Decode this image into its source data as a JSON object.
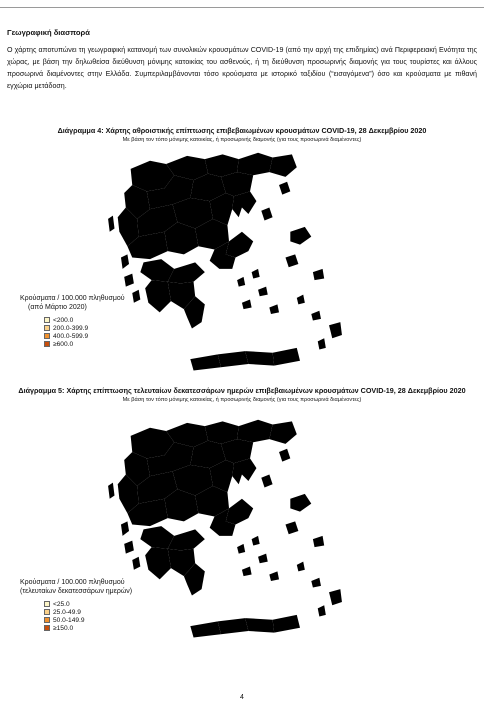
{
  "section": {
    "heading": "Γεωγραφική διασπορά",
    "paragraph": "Ο χάρτης αποτυπώνει τη γεωγραφική κατανομή των συνολικών κρουσμάτων COVID-19 (από την αρχή της επιδημίας) ανά Περιφερειακή Ενότητα της χώρας, με βάση την δηλωθείσα διεύθυνση μόνιμης κατοικίας του ασθενούς, ή τη διεύθυνση προσωρινής διαμονής για τους τουρίστες και άλλους προσωρινά διαμένοντες στην Ελλάδα. Συμπεριλαμβάνονται τόσο κρούσματα με ιστορικό ταξιδίου (“εισαγόμενα”) όσο και κρούσματα με πιθανή εγχώρια μετάδοση."
  },
  "figures": [
    {
      "title": "Διάγραμμα 4: Χάρτης αθροιστικής επίπτωσης επιβεβαιωμένων κρουσμάτων COVID-19, 28 Δεκεμβρίου 2020",
      "subtitle": "Με βάση τον τόπο μόνιμης κατοικίας, ή προσωρινής διαμονής (για τους προσωρινά διαμένοντες)",
      "legend": {
        "title_line1": "Κρούσματα / 100.000 πληθυσμού",
        "title_line2": "(από Μάρτιο 2020)",
        "items": [
          {
            "label": "<200.0",
            "color": "#fdf6c8"
          },
          {
            "label": "200.0-399.9",
            "color": "#fbd189"
          },
          {
            "label": "400.0-599.9",
            "color": "#f0912e"
          },
          {
            "label": "≥600.0",
            "color": "#c84e0c"
          }
        ]
      }
    },
    {
      "title": "Διάγραμμα 5: Χάρτης επίπτωσης τελευταίων δεκατεσσάρων ημερών επιβεβαιωμένων κρουσμάτων COVID-19, 28 Δεκεμβρίου 2020",
      "subtitle": "Με βάση τον τόπο μόνιμης κατοικίας, ή προσωρινής διαμονής (για τους προσωρινά διαμένοντες)",
      "legend": {
        "title_line1": "Κρούσματα / 100.000 πληθυσμού",
        "title_line2": "(τελευταίων δεκατεσσάρων ημερών)",
        "items": [
          {
            "label": "<25.0",
            "color": "#fdf6c8"
          },
          {
            "label": "25.0-49.9",
            "color": "#fbd189"
          },
          {
            "label": "50.0-149.9",
            "color": "#f0912e"
          },
          {
            "label": "≥150.0",
            "color": "#c84e0c"
          }
        ]
      }
    }
  ],
  "page_number": "4"
}
